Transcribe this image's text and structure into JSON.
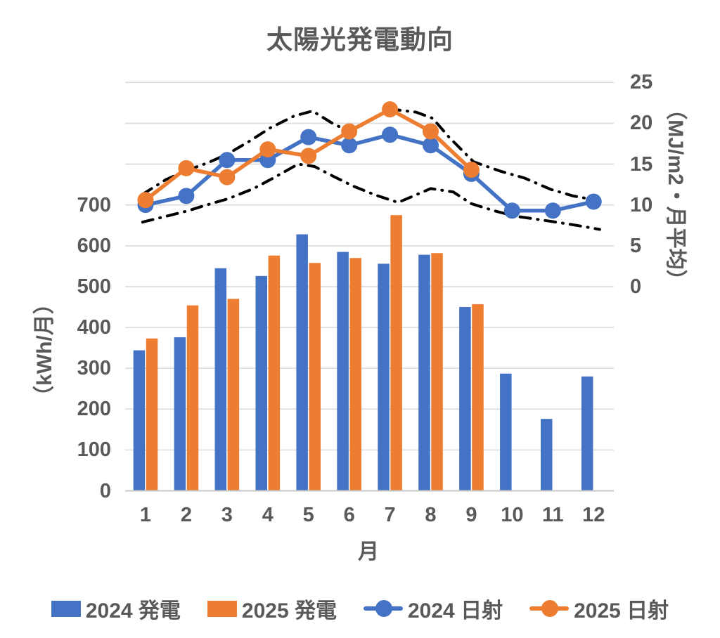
{
  "title": "太陽光発電動向",
  "colors": {
    "blue": "#4472C4",
    "orange": "#ED7D31",
    "annotation_black": "#000000",
    "text_gray": "#595959",
    "gridline": "#DCDCDC",
    "axis_line": "#C8C8C8"
  },
  "chart_data": {
    "type": "bar",
    "subtype": "combo-bar-line-dual-axis",
    "title": "太陽光発電動向",
    "grid": "horizontal-on",
    "categories": [
      "1",
      "2",
      "3",
      "4",
      "5",
      "6",
      "7",
      "8",
      "9",
      "10",
      "11",
      "12"
    ],
    "xlabel": "月",
    "y_left_axis": {
      "title": "（kWh/月）",
      "tick_labels": [
        "700",
        "600",
        "500",
        "400",
        "300",
        "200",
        "100",
        "0"
      ],
      "tick_values": [
        700,
        600,
        500,
        400,
        300,
        200,
        100,
        0
      ],
      "range_shown": [
        0,
        1000
      ]
    },
    "y_right_axis": {
      "title": "（MJ/m2・月平均）",
      "tick_labels": [
        "25",
        "20",
        "15",
        "10",
        "5",
        "0"
      ],
      "tick_values": [
        25,
        20,
        15,
        10,
        5,
        0
      ],
      "range_shown": [
        -25,
        25
      ]
    },
    "series": [
      {
        "name": "2024 発電",
        "type": "bar",
        "axis": "left",
        "color": "#4472C4",
        "values": [
          344,
          376,
          545,
          526,
          628,
          585,
          556,
          578,
          450,
          287,
          176,
          280
        ]
      },
      {
        "name": "2025 発電",
        "type": "bar",
        "axis": "left",
        "color": "#ED7D31",
        "values": [
          373,
          454,
          470,
          576,
          558,
          570,
          675,
          582,
          457,
          null,
          null,
          null
        ]
      },
      {
        "name": "2024 日射",
        "type": "line",
        "axis": "right",
        "color": "#4472C4",
        "values": [
          10.0,
          11.1,
          15.5,
          15.5,
          18.3,
          17.3,
          18.6,
          17.3,
          13.8,
          9.3,
          9.3,
          10.4
        ]
      },
      {
        "name": "2025 日射",
        "type": "line",
        "axis": "right",
        "color": "#ED7D31",
        "values": [
          10.6,
          14.5,
          13.4,
          16.8,
          16.0,
          19.0,
          21.7,
          19.0,
          14.3,
          null,
          null,
          null
        ]
      }
    ],
    "annotations": [
      {
        "name": "upper-dashdot-envelope",
        "type": "line",
        "style": "dash-dot",
        "axis": "right",
        "color": "#000000",
        "points": [
          [
            0.93,
            11.3
          ],
          [
            1.5,
            13.1
          ],
          [
            2.05,
            14.3
          ],
          [
            2.55,
            15.2
          ],
          [
            3.0,
            16.2
          ],
          [
            3.55,
            17.8
          ],
          [
            4.05,
            19.4
          ],
          [
            4.65,
            20.9
          ],
          [
            5.1,
            21.5
          ],
          [
            5.65,
            19.8
          ],
          [
            6.05,
            19.0
          ],
          [
            7.0,
            21.75
          ],
          [
            7.65,
            21.35
          ],
          [
            8.05,
            20.6
          ],
          [
            8.45,
            18.3
          ],
          [
            9.05,
            15.3
          ],
          [
            9.7,
            14.15
          ],
          [
            10.3,
            13.3
          ],
          [
            10.95,
            11.9
          ],
          [
            11.5,
            11.1
          ],
          [
            12.15,
            10.5
          ]
        ]
      },
      {
        "name": "lower-dashdot-envelope",
        "type": "line",
        "style": "dash-dot",
        "axis": "right",
        "color": "#000000",
        "points": [
          [
            0.93,
            7.9
          ],
          [
            1.5,
            8.6
          ],
          [
            2.05,
            9.3
          ],
          [
            2.5,
            10.0
          ],
          [
            3.05,
            10.8
          ],
          [
            3.65,
            12.0
          ],
          [
            4.1,
            13.2
          ],
          [
            4.75,
            15.0
          ],
          [
            5.15,
            14.7
          ],
          [
            5.65,
            13.4
          ],
          [
            6.1,
            12.3
          ],
          [
            6.65,
            11.2
          ],
          [
            7.2,
            10.3
          ],
          [
            8.0,
            12.0
          ],
          [
            8.55,
            11.6
          ],
          [
            9.0,
            10.15
          ],
          [
            9.55,
            9.3
          ],
          [
            10.05,
            8.65
          ],
          [
            10.6,
            8.25
          ],
          [
            11.15,
            7.85
          ],
          [
            11.7,
            7.4
          ],
          [
            12.15,
            7.0
          ]
        ]
      }
    ],
    "legend": {
      "position": "bottom",
      "entries": [
        {
          "label": "2024 発電",
          "swatch": "bar",
          "color": "#4472C4"
        },
        {
          "label": "2025 発電",
          "swatch": "bar",
          "color": "#ED7D31"
        },
        {
          "label": "2024 日射",
          "swatch": "line-marker",
          "color": "#4472C4"
        },
        {
          "label": "2025 日射",
          "swatch": "line-marker",
          "color": "#ED7D31"
        }
      ]
    }
  }
}
